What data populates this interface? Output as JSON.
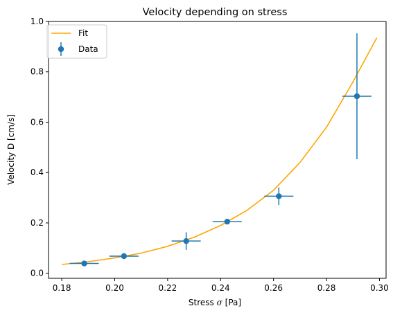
{
  "chart_data": {
    "type": "scatter",
    "title": "Velocity depending on stress",
    "xlabel_prefix": "Stress ",
    "xlabel_symbol": "σ",
    "xlabel_suffix": " [Pa]",
    "ylabel": "Velocity D [cm/s]",
    "xlim": [
      0.175,
      0.3025
    ],
    "ylim": [
      -0.02,
      1.0
    ],
    "x_ticks": [
      {
        "value": 0.18,
        "label": "0.18"
      },
      {
        "value": 0.2,
        "label": "0.20"
      },
      {
        "value": 0.22,
        "label": "0.22"
      },
      {
        "value": 0.24,
        "label": "0.24"
      },
      {
        "value": 0.26,
        "label": "0.26"
      },
      {
        "value": 0.28,
        "label": "0.28"
      },
      {
        "value": 0.3,
        "label": "0.30"
      }
    ],
    "y_ticks": [
      {
        "value": 0.0,
        "label": "0.0"
      },
      {
        "value": 0.2,
        "label": "0.2"
      },
      {
        "value": 0.4,
        "label": "0.4"
      },
      {
        "value": 0.6,
        "label": "0.6"
      },
      {
        "value": 0.8,
        "label": "0.8"
      },
      {
        "value": 1.0,
        "label": "1.0"
      }
    ],
    "grid": false,
    "legend_position": "top-left",
    "series": [
      {
        "name": "Fit",
        "kind": "line",
        "color": "#ffa500",
        "x": [
          0.18,
          0.19,
          0.2,
          0.21,
          0.22,
          0.23,
          0.24,
          0.25,
          0.26,
          0.27,
          0.28,
          0.29,
          0.299
        ],
        "y": [
          0.035,
          0.046,
          0.061,
          0.08,
          0.107,
          0.143,
          0.19,
          0.25,
          0.33,
          0.44,
          0.58,
          0.76,
          0.935
        ]
      },
      {
        "name": "Data",
        "kind": "errorbar",
        "color": "#1f77b4",
        "points": [
          {
            "x": 0.1885,
            "y": 0.039,
            "xerr": 0.0055,
            "yerr": 0.008
          },
          {
            "x": 0.2035,
            "y": 0.068,
            "xerr": 0.0055,
            "yerr": 0.01
          },
          {
            "x": 0.227,
            "y": 0.128,
            "xerr": 0.0055,
            "yerr": 0.035
          },
          {
            "x": 0.2425,
            "y": 0.205,
            "xerr": 0.0055,
            "yerr": 0.008
          },
          {
            "x": 0.262,
            "y": 0.306,
            "xerr": 0.0055,
            "yerr": 0.035
          },
          {
            "x": 0.2915,
            "y": 0.703,
            "xerr": 0.0055,
            "yerr": 0.25
          }
        ]
      }
    ]
  }
}
